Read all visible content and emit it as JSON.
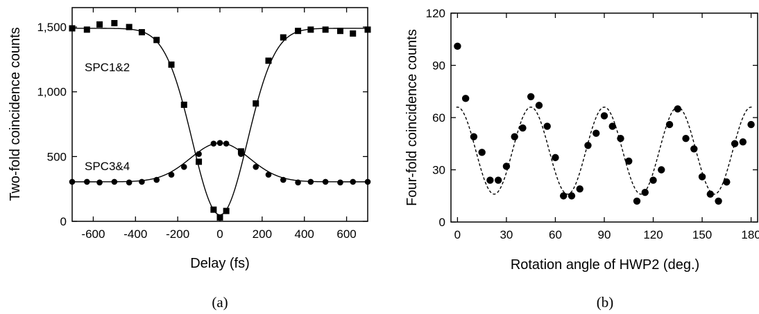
{
  "chart_data": [
    {
      "type": "scatter",
      "caption": "(a)",
      "xlabel": "Delay (fs)",
      "ylabel": "Two-fold coincidence counts",
      "xlim": [
        -700,
        700
      ],
      "ylim": [
        0,
        1650
      ],
      "xticks": [
        -600,
        -400,
        -200,
        0,
        200,
        400,
        600
      ],
      "xtick_labels": [
        "-600",
        "-400",
        "-200",
        "0",
        "200",
        "400",
        "600"
      ],
      "yticks": [
        0,
        500,
        1000,
        1500
      ],
      "ytick_labels": [
        "0",
        "500",
        "1,000",
        "1,500"
      ],
      "series": [
        {
          "name": "SPC1&2",
          "marker": "square",
          "fit": "dip",
          "fit_params": {
            "baseline": 1490,
            "depth": 1440,
            "width_fs": 130
          },
          "x": [
            -700,
            -630,
            -570,
            -500,
            -430,
            -370,
            -300,
            -230,
            -170,
            -100,
            -30,
            0,
            30,
            100,
            170,
            230,
            300,
            370,
            430,
            500,
            570,
            630,
            700
          ],
          "y": [
            1490,
            1480,
            1520,
            1530,
            1500,
            1460,
            1400,
            1210,
            900,
            460,
            90,
            30,
            80,
            540,
            910,
            1240,
            1420,
            1470,
            1480,
            1480,
            1470,
            1450,
            1480
          ]
        },
        {
          "name": "SPC3&4",
          "marker": "circle",
          "fit": "peak",
          "fit_params": {
            "baseline": 305,
            "height": 300,
            "width_fs": 140
          },
          "x": [
            -700,
            -630,
            -570,
            -500,
            -430,
            -370,
            -300,
            -230,
            -170,
            -100,
            -30,
            0,
            30,
            100,
            170,
            230,
            300,
            370,
            430,
            500,
            570,
            630,
            700
          ],
          "y": [
            305,
            305,
            300,
            305,
            300,
            305,
            320,
            360,
            420,
            520,
            600,
            605,
            600,
            520,
            420,
            360,
            320,
            300,
            305,
            305,
            300,
            305,
            305
          ]
        }
      ]
    },
    {
      "type": "scatter",
      "caption": "(b)",
      "xlabel": "Rotation angle of HWP2 (deg.)",
      "ylabel": "Four-fold coincidence counts",
      "xlim": [
        -4,
        184
      ],
      "ylim": [
        0,
        120
      ],
      "xticks": [
        0,
        30,
        60,
        90,
        120,
        150,
        180
      ],
      "xtick_labels": [
        "0",
        "30",
        "60",
        "90",
        "120",
        "150",
        "180"
      ],
      "yticks": [
        0,
        30,
        60,
        90,
        120
      ],
      "ytick_labels": [
        "0",
        "30",
        "60",
        "90",
        "120"
      ],
      "series": [
        {
          "marker": "circle",
          "fit": "cosine",
          "fit_params": {
            "mean": 41,
            "amplitude": 25,
            "period_deg": 45
          },
          "x": [
            0,
            5,
            10,
            15,
            20,
            25,
            30,
            35,
            40,
            45,
            50,
            55,
            60,
            65,
            70,
            75,
            80,
            85,
            90,
            95,
            100,
            105,
            110,
            115,
            120,
            125,
            130,
            135,
            140,
            145,
            150,
            155,
            160,
            165,
            170,
            175,
            180
          ],
          "y": [
            101,
            71,
            49,
            40,
            24,
            24,
            32,
            49,
            54,
            72,
            67,
            55,
            37,
            15,
            15,
            19,
            44,
            51,
            61,
            55,
            48,
            35,
            12,
            17,
            24,
            30,
            56,
            65,
            48,
            42,
            26,
            16,
            12,
            23,
            45,
            46,
            56
          ]
        }
      ]
    }
  ],
  "panel_a": {
    "series_labels": [
      "SPC1&2",
      "SPC3&4"
    ]
  }
}
